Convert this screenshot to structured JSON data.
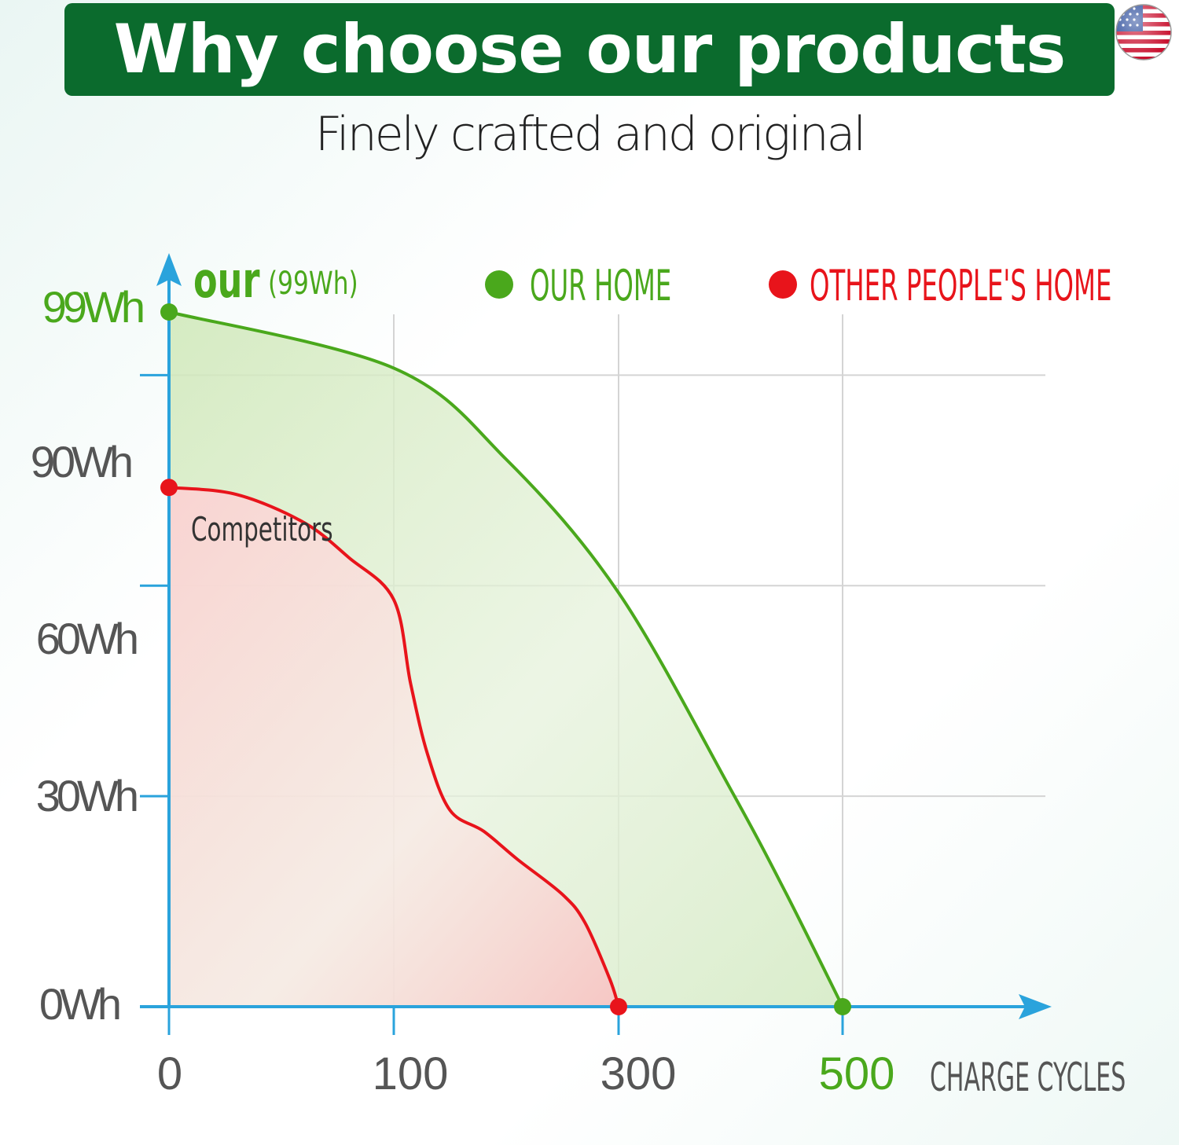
{
  "banner": {
    "title": "Why choose our products"
  },
  "subtitle": "Finely crafted and original",
  "icons": {
    "flag": "us-flag-icon"
  },
  "colors": {
    "banner_bg": "#0b6b2d",
    "our": "#4aa81c",
    "other": "#e8141b",
    "axis": "#2aa3dc",
    "grid": "#d4d4d4",
    "tick_text": "#555555"
  },
  "legend": {
    "our_label": "OUR HOME",
    "other_label": "OTHER PEOPLE'S HOME"
  },
  "annotations": {
    "our_big": "our",
    "our_small": "(99Wh)",
    "competitors": "Competitors"
  },
  "chart_data": {
    "type": "area",
    "title": "",
    "xlabel": "CHARGE CYCLES",
    "ylabel": "",
    "x_ticks": [
      "0",
      "100",
      "300",
      "500"
    ],
    "y_ticks": [
      "0Wh",
      "30Wh",
      "60Wh",
      "90Wh",
      "99Wh"
    ],
    "x_tick_values": [
      0,
      100,
      300,
      500
    ],
    "y_tick_values": [
      0,
      30,
      60,
      90,
      99
    ],
    "xlim": [
      0,
      500
    ],
    "ylim": [
      0,
      99
    ],
    "grid": true,
    "legend": "top",
    "series": [
      {
        "name": "OUR HOME",
        "color": "#4aa81c",
        "x": [
          0,
          100,
          200,
          300,
          400,
          450,
          500
        ],
        "y": [
          99,
          91,
          78,
          59,
          31,
          16,
          0
        ]
      },
      {
        "name": "OTHER PEOPLE'S HOME",
        "color": "#e8141b",
        "x": [
          0,
          30,
          60,
          80,
          100,
          115,
          130,
          150,
          180,
          210,
          250,
          270,
          292,
          300
        ],
        "y": [
          74,
          73,
          69,
          64,
          58,
          46,
          36,
          28,
          25,
          21,
          16,
          12,
          4,
          0
        ]
      }
    ]
  }
}
